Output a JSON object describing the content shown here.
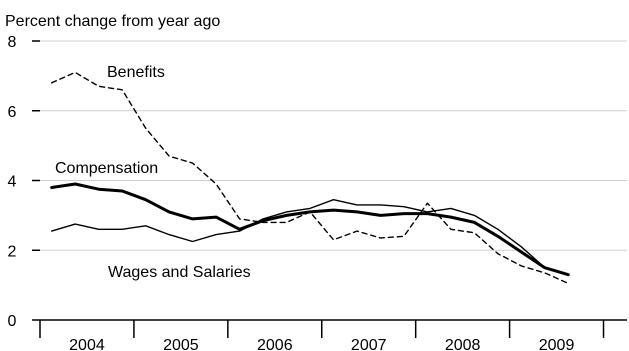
{
  "chart_data": {
    "type": "line",
    "ylabel": "Percent change from year ago",
    "ylim": [
      0,
      8
    ],
    "yticks": [
      0,
      2,
      4,
      6,
      8
    ],
    "xlim": [
      2003.5,
      2009.75
    ],
    "year_labels": [
      "2004",
      "2005",
      "2006",
      "2007",
      "2008",
      "2009"
    ],
    "grid": "horizontal",
    "series": [
      {
        "name": "Benefits",
        "style": "dashed",
        "x": [
          2003.625,
          2003.875,
          2004.125,
          2004.375,
          2004.625,
          2004.875,
          2005.125,
          2005.375,
          2005.625,
          2005.875,
          2006.125,
          2006.375,
          2006.625,
          2006.875,
          2007.125,
          2007.375,
          2007.625,
          2007.875,
          2008.125,
          2008.375,
          2008.625,
          2008.875,
          2009.125,
          2009.375,
          2009.625
        ],
        "values": [
          6.8,
          7.1,
          6.7,
          6.6,
          5.5,
          4.7,
          4.5,
          3.9,
          2.9,
          2.8,
          2.8,
          3.1,
          2.3,
          2.55,
          2.35,
          2.4,
          3.35,
          2.6,
          2.5,
          1.9,
          1.55,
          1.35,
          1.05,
          null,
          null
        ]
      },
      {
        "name": "Compensation",
        "style": "bold",
        "x": [
          2003.625,
          2003.875,
          2004.125,
          2004.375,
          2004.625,
          2004.875,
          2005.125,
          2005.375,
          2005.625,
          2005.875,
          2006.125,
          2006.375,
          2006.625,
          2006.875,
          2007.125,
          2007.375,
          2007.625,
          2007.875,
          2008.125,
          2008.375,
          2008.625,
          2008.875,
          2009.125,
          2009.375,
          2009.625
        ],
        "values": [
          3.8,
          3.9,
          3.75,
          3.7,
          3.45,
          3.1,
          2.9,
          2.95,
          2.6,
          2.85,
          3.0,
          3.1,
          3.15,
          3.1,
          3.0,
          3.05,
          3.05,
          2.95,
          2.8,
          2.4,
          1.95,
          1.5,
          1.3,
          null,
          null
        ]
      },
      {
        "name": "Wages and Salaries",
        "style": "thin",
        "x": [
          2003.625,
          2003.875,
          2004.125,
          2004.375,
          2004.625,
          2004.875,
          2005.125,
          2005.375,
          2005.625,
          2005.875,
          2006.125,
          2006.375,
          2006.625,
          2006.875,
          2007.125,
          2007.375,
          2007.625,
          2007.875,
          2008.125,
          2008.375,
          2008.625,
          2008.875,
          2009.125,
          2009.375,
          2009.625
        ],
        "values": [
          2.55,
          2.75,
          2.6,
          2.6,
          2.7,
          2.45,
          2.25,
          2.45,
          2.55,
          2.9,
          3.1,
          3.2,
          3.45,
          3.3,
          3.3,
          3.25,
          3.1,
          3.2,
          3.0,
          2.6,
          2.1,
          1.5,
          1.3,
          null,
          null
        ]
      }
    ]
  }
}
